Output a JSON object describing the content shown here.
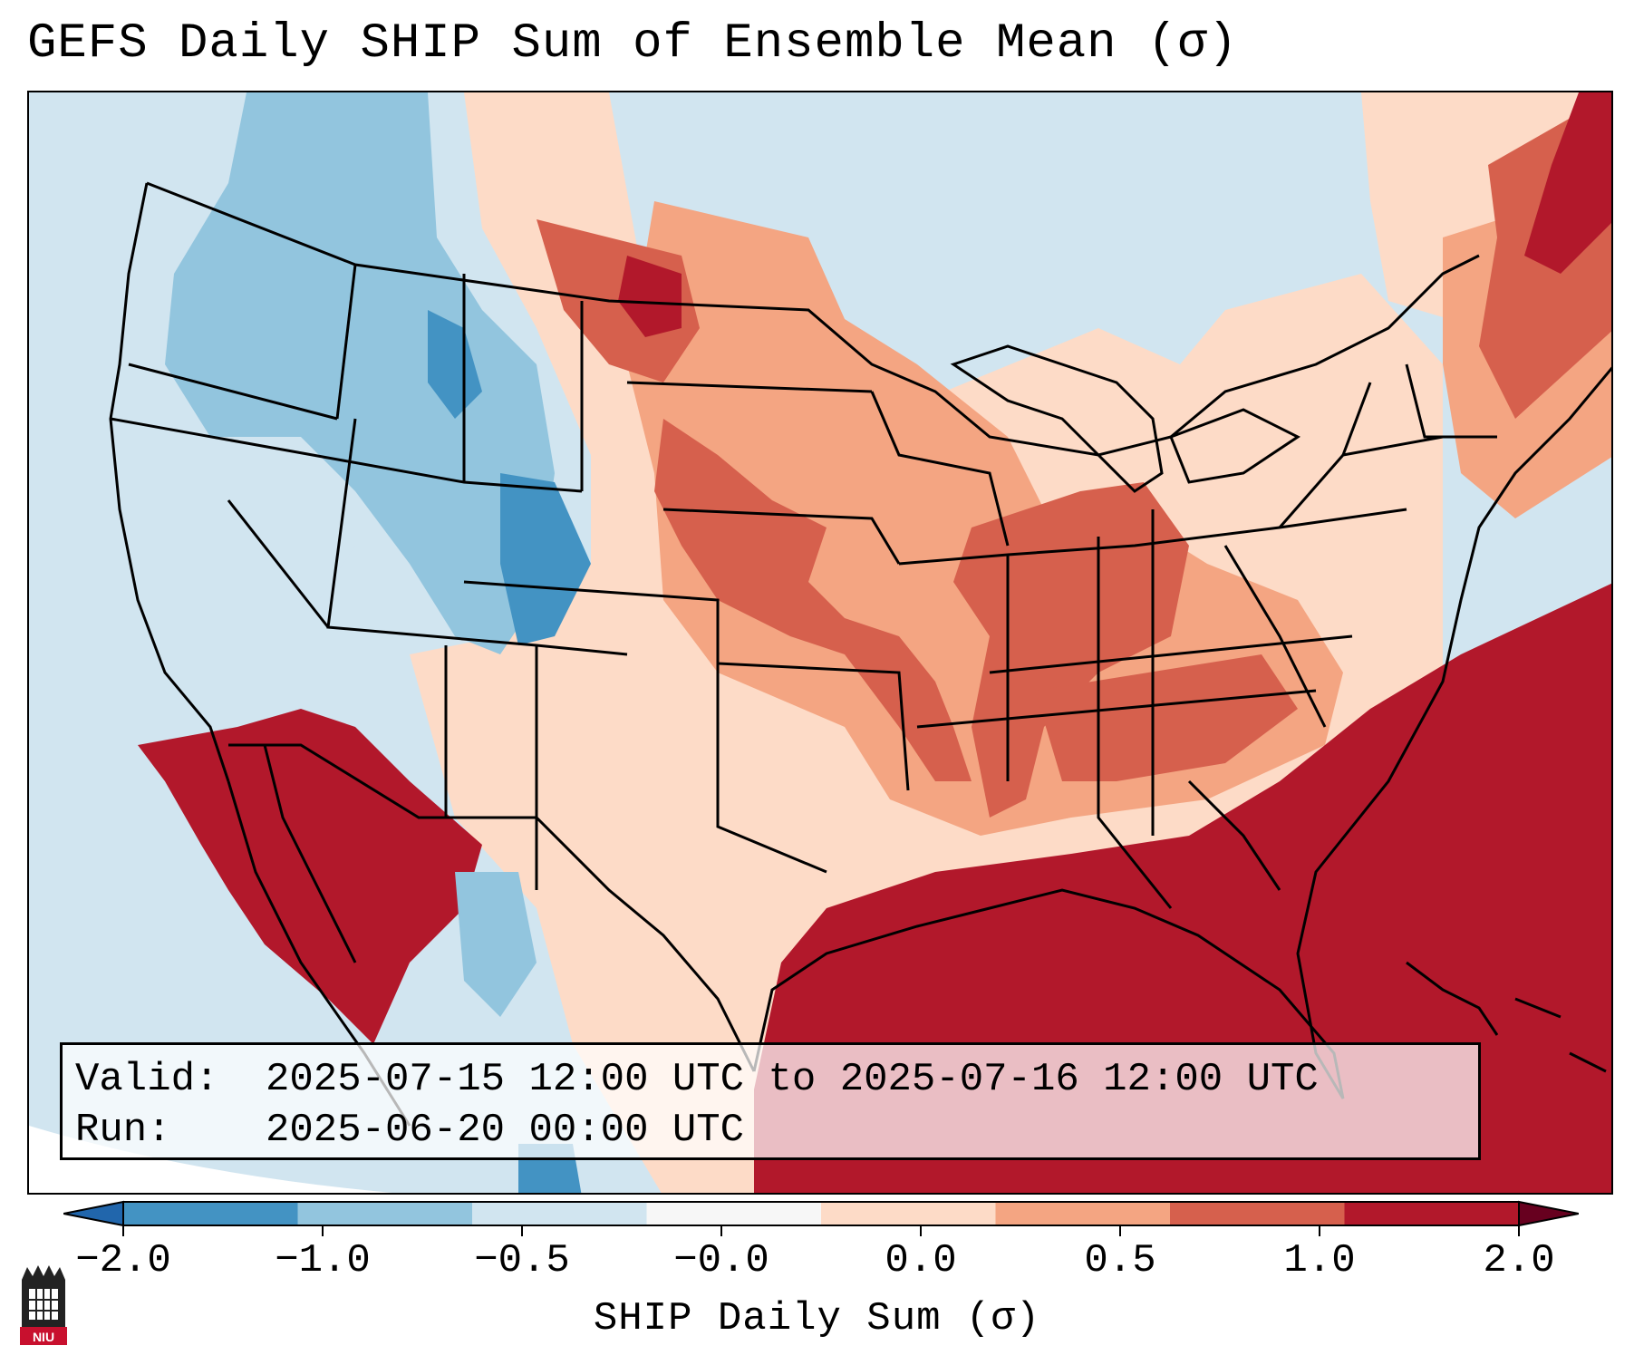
{
  "title": "GEFS Daily SHIP Sum of Ensemble Mean (σ)",
  "info": {
    "valid_label": "Valid:",
    "valid_value": "2025-07-15 12:00 UTC to 2025-07-16 12:00 UTC",
    "run_label": "Run:",
    "run_value": "2025-06-20 00:00 UTC"
  },
  "colorbar": {
    "label": "SHIP Daily Sum (σ)",
    "ticks": [
      "−2.0",
      "−1.0",
      "−0.5",
      "−0.0",
      "0.0",
      "0.5",
      "1.0",
      "2.0"
    ],
    "colors": [
      "#4393c3",
      "#92c5de",
      "#d1e5f0",
      "#f7f7f7",
      "#fddbc7",
      "#f4a582",
      "#d6604d",
      "#b2182b"
    ],
    "under_color": "#2166ac",
    "over_color": "#67001f"
  },
  "logo": {
    "text": "NIU",
    "icon": "niu-castle-logo-icon"
  },
  "map_legend_colors": {
    "neg2": "#4393c3",
    "neg1": "#92c5de",
    "neg05": "#d1e5f0",
    "pos0": "#fddbc7",
    "pos05": "#f4a582",
    "pos1": "#d6604d",
    "pos2": "#b2182b"
  }
}
